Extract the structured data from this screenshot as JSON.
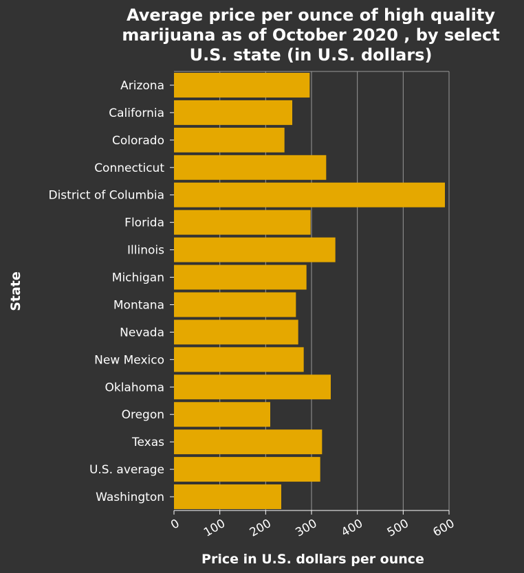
{
  "chart_data": {
    "type": "bar",
    "orientation": "horizontal",
    "title": "Average price per ounce of high quality marijuana as of October 2020 , by select U.S. state (in U.S. dollars)",
    "title_lines": [
      "Average price per ounce of high quality",
      "marijuana as of October 2020 , by select",
      "U.S. state (in U.S. dollars)"
    ],
    "xlabel": "Price in U.S. dollars per ounce",
    "ylabel": "State",
    "xlim": [
      0,
      600
    ],
    "x_ticks": [
      0,
      100,
      200,
      300,
      400,
      500,
      600
    ],
    "grid": "vertical",
    "categories": [
      "Arizona",
      "California",
      "Colorado",
      "Connecticut",
      "District of Columbia",
      "Florida",
      "Illinois",
      "Michigan",
      "Montana",
      "Nevada",
      "New Mexico",
      "Oklahoma",
      "Oregon",
      "Texas",
      "U.S. average",
      "Washington"
    ],
    "values": [
      296,
      258,
      241,
      332,
      591,
      298,
      352,
      289,
      266,
      271,
      283,
      342,
      210,
      323,
      319,
      234
    ]
  },
  "colors": {
    "background": "#333333",
    "bar": "#E5A800",
    "grid": "#9a9a9a",
    "text": "#ffffff"
  }
}
